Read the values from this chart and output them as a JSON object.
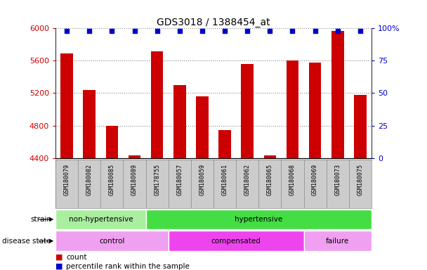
{
  "title": "GDS3018 / 1388454_at",
  "samples": [
    "GSM180079",
    "GSM180082",
    "GSM180085",
    "GSM180089",
    "GSM178755",
    "GSM180057",
    "GSM180059",
    "GSM180061",
    "GSM180062",
    "GSM180065",
    "GSM180068",
    "GSM180069",
    "GSM180073",
    "GSM180075"
  ],
  "counts": [
    5690,
    5240,
    4800,
    4430,
    5720,
    5300,
    5160,
    4740,
    5560,
    4430,
    5600,
    5580,
    5970,
    5180
  ],
  "percentile_ranks": [
    98,
    98,
    98,
    98,
    98,
    98,
    98,
    98,
    98,
    98,
    98,
    98,
    98,
    98
  ],
  "ymin": 4400,
  "ymax": 6000,
  "yticks": [
    4400,
    4800,
    5200,
    5600,
    6000
  ],
  "ytick_labels": [
    "4400",
    "4800",
    "5200",
    "5600",
    "6000"
  ],
  "right_yticks": [
    0,
    25,
    50,
    75,
    100
  ],
  "right_ytick_labels": [
    "0",
    "25",
    "50",
    "75",
    "100%"
  ],
  "bar_color": "#cc0000",
  "marker_color": "#0000cc",
  "bar_width": 0.55,
  "strain_groups": [
    {
      "label": "non-hypertensive",
      "start": 0,
      "end": 4,
      "color": "#aaeea0"
    },
    {
      "label": "hypertensive",
      "start": 4,
      "end": 14,
      "color": "#44dd44"
    }
  ],
  "disease_groups": [
    {
      "label": "control",
      "start": 0,
      "end": 5,
      "color": "#f0a0f0"
    },
    {
      "label": "compensated",
      "start": 5,
      "end": 11,
      "color": "#ee44ee"
    },
    {
      "label": "failure",
      "start": 11,
      "end": 14,
      "color": "#f0a0f0"
    }
  ],
  "bg_color": "#ffffff",
  "tick_label_bg": "#cccccc",
  "grid_color": "#888888",
  "title_fontsize": 10,
  "axis_fontsize": 8,
  "label_fontsize": 8,
  "sample_fontsize": 6
}
